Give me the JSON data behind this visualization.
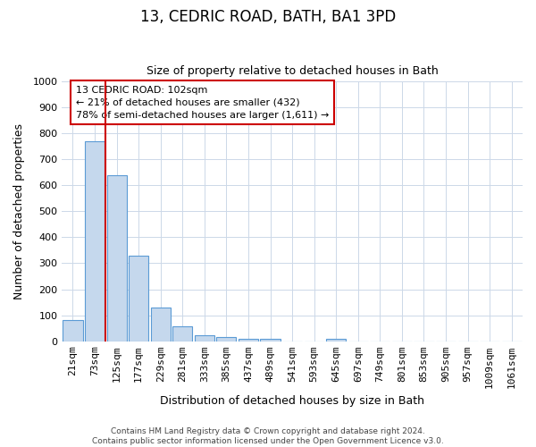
{
  "title": "13, CEDRIC ROAD, BATH, BA1 3PD",
  "subtitle": "Size of property relative to detached houses in Bath",
  "xlabel": "Distribution of detached houses by size in Bath",
  "ylabel": "Number of detached properties",
  "bar_labels": [
    "21sqm",
    "73sqm",
    "125sqm",
    "177sqm",
    "229sqm",
    "281sqm",
    "333sqm",
    "385sqm",
    "437sqm",
    "489sqm",
    "541sqm",
    "593sqm",
    "645sqm",
    "697sqm",
    "749sqm",
    "801sqm",
    "853sqm",
    "905sqm",
    "957sqm",
    "1009sqm",
    "1061sqm"
  ],
  "bar_values": [
    82,
    770,
    640,
    330,
    130,
    57,
    22,
    15,
    10,
    8,
    0,
    0,
    8,
    0,
    0,
    0,
    0,
    0,
    0,
    0,
    0
  ],
  "bar_color": "#c5d8ed",
  "bar_edge_color": "#5b9bd5",
  "ylim": [
    0,
    1000
  ],
  "yticks": [
    0,
    100,
    200,
    300,
    400,
    500,
    600,
    700,
    800,
    900,
    1000
  ],
  "red_line_x": 1.5,
  "annotation_box_text": "13 CEDRIC ROAD: 102sqm\n← 21% of detached houses are smaller (432)\n78% of semi-detached houses are larger (1,611) →",
  "footer_line1": "Contains HM Land Registry data © Crown copyright and database right 2024.",
  "footer_line2": "Contains public sector information licensed under the Open Government Licence v3.0.",
  "background_color": "#ffffff",
  "grid_color": "#ccd8e8",
  "annotation_border_color": "#cc0000",
  "title_fontsize": 12,
  "subtitle_fontsize": 9,
  "xlabel_fontsize": 9,
  "ylabel_fontsize": 9,
  "xtick_fontsize": 7,
  "ytick_fontsize": 8,
  "footer_fontsize": 6.5
}
